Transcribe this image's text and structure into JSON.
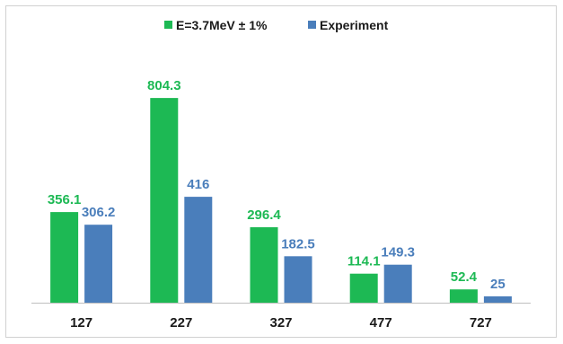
{
  "chart_data": {
    "type": "bar",
    "categories": [
      "127",
      "227",
      "327",
      "477",
      "727"
    ],
    "series": [
      {
        "name": "E=3.7MeV ± 1%",
        "color": "#1db954",
        "values": [
          356.1,
          804.3,
          296.4,
          114.1,
          52.4
        ],
        "labels": [
          "356.1",
          "804.3",
          "296.4",
          "114.1",
          "52.4"
        ]
      },
      {
        "name": "Experiment",
        "color": "#4a7ebb",
        "values": [
          306.2,
          416,
          182.5,
          149.3,
          25
        ],
        "labels": [
          "306.2",
          "416",
          "182.5",
          "149.3",
          "25"
        ]
      }
    ],
    "title": "",
    "xlabel": "",
    "ylabel": "",
    "ylim": [
      0,
      900
    ],
    "grid": false,
    "legend": "top-center",
    "data_labels": true
  }
}
